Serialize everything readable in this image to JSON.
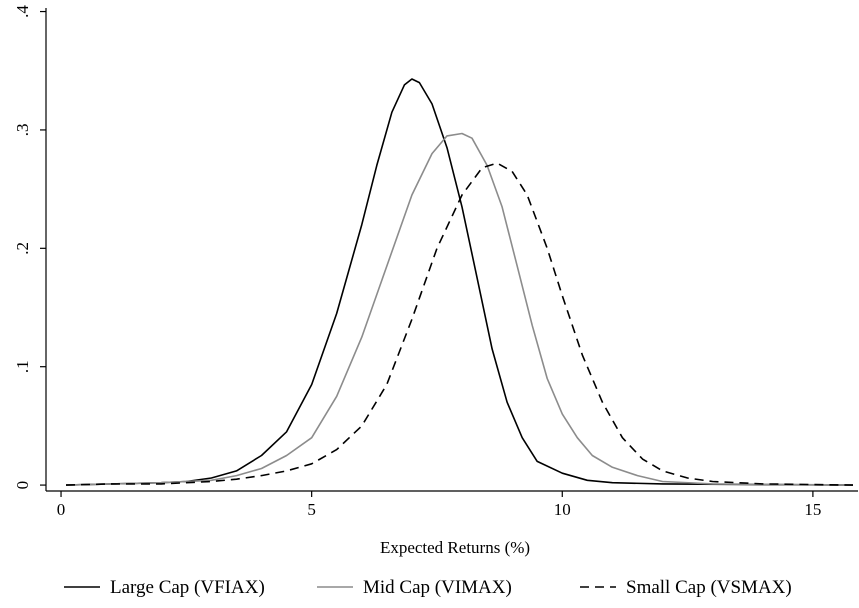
{
  "chart_data": {
    "type": "line",
    "title": "",
    "xlabel": "Expected Returns (%)",
    "ylabel": "",
    "xlim": [
      -0.3,
      15.9
    ],
    "ylim": [
      -0.005,
      0.403
    ],
    "x_ticks": [
      0,
      5,
      10,
      15
    ],
    "x_tick_labels": [
      "0",
      "5",
      "10",
      "15"
    ],
    "y_ticks": [
      0,
      0.1,
      0.2,
      0.3,
      0.4
    ],
    "y_tick_labels": [
      "0",
      ".1",
      ".2",
      ".3",
      ".4"
    ],
    "grid": false,
    "legend_position": "bottom",
    "series": [
      {
        "name": "Large Cap (VFIAX)",
        "color": "#000000",
        "dash": "solid",
        "points": [
          [
            0.1,
            0.0
          ],
          [
            1.0,
            0.001
          ],
          [
            2.0,
            0.002
          ],
          [
            2.5,
            0.003
          ],
          [
            3.0,
            0.006
          ],
          [
            3.5,
            0.012
          ],
          [
            4.0,
            0.025
          ],
          [
            4.5,
            0.045
          ],
          [
            5.0,
            0.085
          ],
          [
            5.5,
            0.145
          ],
          [
            6.0,
            0.22
          ],
          [
            6.3,
            0.27
          ],
          [
            6.6,
            0.315
          ],
          [
            6.85,
            0.338
          ],
          [
            7.0,
            0.343
          ],
          [
            7.15,
            0.34
          ],
          [
            7.4,
            0.322
          ],
          [
            7.7,
            0.285
          ],
          [
            8.0,
            0.235
          ],
          [
            8.3,
            0.175
          ],
          [
            8.6,
            0.115
          ],
          [
            8.9,
            0.07
          ],
          [
            9.2,
            0.04
          ],
          [
            9.5,
            0.02
          ],
          [
            10.0,
            0.01
          ],
          [
            10.5,
            0.004
          ],
          [
            11.0,
            0.002
          ],
          [
            12.0,
            0.001
          ],
          [
            15.8,
            0.0
          ]
        ]
      },
      {
        "name": "Mid Cap (VIMAX)",
        "color": "#8c8c8c",
        "dash": "solid",
        "points": [
          [
            0.1,
            0.0
          ],
          [
            1.0,
            0.001
          ],
          [
            2.0,
            0.002
          ],
          [
            3.0,
            0.004
          ],
          [
            3.5,
            0.008
          ],
          [
            4.0,
            0.014
          ],
          [
            4.5,
            0.025
          ],
          [
            5.0,
            0.04
          ],
          [
            5.5,
            0.075
          ],
          [
            6.0,
            0.125
          ],
          [
            6.5,
            0.185
          ],
          [
            7.0,
            0.245
          ],
          [
            7.4,
            0.28
          ],
          [
            7.7,
            0.295
          ],
          [
            8.0,
            0.297
          ],
          [
            8.2,
            0.293
          ],
          [
            8.5,
            0.27
          ],
          [
            8.8,
            0.235
          ],
          [
            9.1,
            0.185
          ],
          [
            9.4,
            0.135
          ],
          [
            9.7,
            0.09
          ],
          [
            10.0,
            0.06
          ],
          [
            10.3,
            0.04
          ],
          [
            10.6,
            0.025
          ],
          [
            11.0,
            0.015
          ],
          [
            11.5,
            0.008
          ],
          [
            12.0,
            0.003
          ],
          [
            13.0,
            0.001
          ],
          [
            15.8,
            0.0
          ]
        ]
      },
      {
        "name": "Small Cap (VSMAX)",
        "color": "#000000",
        "dash": "dashed",
        "points": [
          [
            0.1,
            0.0
          ],
          [
            1.0,
            0.001
          ],
          [
            2.0,
            0.001
          ],
          [
            3.0,
            0.003
          ],
          [
            3.5,
            0.005
          ],
          [
            4.0,
            0.008
          ],
          [
            4.5,
            0.012
          ],
          [
            5.0,
            0.018
          ],
          [
            5.5,
            0.03
          ],
          [
            6.0,
            0.05
          ],
          [
            6.5,
            0.085
          ],
          [
            7.0,
            0.14
          ],
          [
            7.5,
            0.2
          ],
          [
            8.0,
            0.245
          ],
          [
            8.4,
            0.268
          ],
          [
            8.7,
            0.272
          ],
          [
            9.0,
            0.265
          ],
          [
            9.3,
            0.245
          ],
          [
            9.7,
            0.2
          ],
          [
            10.0,
            0.16
          ],
          [
            10.4,
            0.11
          ],
          [
            10.8,
            0.07
          ],
          [
            11.2,
            0.04
          ],
          [
            11.6,
            0.022
          ],
          [
            12.0,
            0.012
          ],
          [
            12.5,
            0.006
          ],
          [
            13.0,
            0.003
          ],
          [
            14.0,
            0.001
          ],
          [
            15.8,
            0.0
          ]
        ]
      }
    ]
  }
}
